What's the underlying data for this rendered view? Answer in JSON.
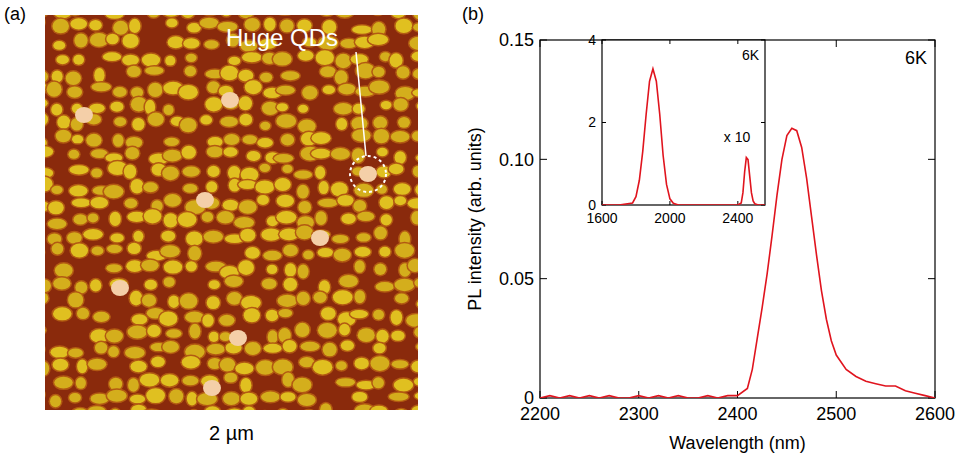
{
  "chart_data": [
    {
      "type": "image",
      "title": "(a)",
      "annotations": [
        "Huge QDs"
      ],
      "xlabel": "2 µm"
    },
    {
      "type": "line",
      "title": "(b)",
      "annotations": [
        "6K"
      ],
      "xlabel": "Wavelength (nm)",
      "ylabel": "PL intensity (arb. units)",
      "xlim": [
        2200,
        2600
      ],
      "ylim": [
        0,
        0.15
      ],
      "xticks": [
        2200,
        2300,
        2400,
        2500,
        2600
      ],
      "yticks": [
        0,
        0.05,
        {
          "value": 0.1,
          "label": "0.10"
        },
        0.15
      ],
      "x": [
        2200,
        2210,
        2220,
        2230,
        2240,
        2250,
        2260,
        2270,
        2280,
        2290,
        2300,
        2310,
        2320,
        2330,
        2340,
        2350,
        2360,
        2370,
        2380,
        2390,
        2400,
        2410,
        2415,
        2420,
        2425,
        2430,
        2435,
        2440,
        2445,
        2450,
        2455,
        2460,
        2465,
        2470,
        2475,
        2480,
        2485,
        2490,
        2495,
        2500,
        2510,
        2520,
        2530,
        2540,
        2550,
        2560,
        2570,
        2580,
        2590,
        2600
      ],
      "series": [
        {
          "color": "#e0141e",
          "values": [
            0,
            0.001,
            0,
            0.001,
            0,
            0.001,
            0,
            0.001,
            0,
            0,
            0.001,
            0,
            0.001,
            0,
            0.001,
            0,
            0,
            0.001,
            0,
            0.001,
            0.001,
            0.004,
            0.012,
            0.025,
            0.038,
            0.052,
            0.068,
            0.085,
            0.1,
            0.11,
            0.113,
            0.112,
            0.105,
            0.092,
            0.076,
            0.06,
            0.045,
            0.033,
            0.024,
            0.018,
            0.012,
            0.009,
            0.007,
            0.006,
            0.005,
            0.005,
            0.003,
            0.002,
            0.001,
            0
          ]
        }
      ]
    },
    {
      "type": "line",
      "annotations": [
        "6K",
        "x 10"
      ],
      "xlim": [
        1600,
        2560
      ],
      "ylim": [
        0,
        4
      ],
      "xticks": [
        1600,
        2000,
        2400
      ],
      "yticks": [
        0,
        2,
        4
      ],
      "x": [
        1600,
        1700,
        1780,
        1800,
        1820,
        1840,
        1860,
        1880,
        1900,
        1920,
        1940,
        1960,
        1980,
        2000,
        2020,
        2050,
        2100,
        2200,
        2300,
        2400,
        2420,
        2430,
        2440,
        2450,
        2460,
        2470,
        2480,
        2490,
        2500,
        2520,
        2560
      ],
      "series": [
        {
          "color": "#e0141e",
          "values": [
            0,
            0,
            0.05,
            0.2,
            0.6,
            1.3,
            2.2,
            3.0,
            3.3,
            3.0,
            2.2,
            1.2,
            0.5,
            0.15,
            0.04,
            0,
            0,
            0,
            0,
            0,
            0.05,
            0.3,
            0.8,
            1.15,
            1.1,
            0.7,
            0.3,
            0.1,
            0.03,
            0,
            0
          ]
        }
      ]
    }
  ]
}
